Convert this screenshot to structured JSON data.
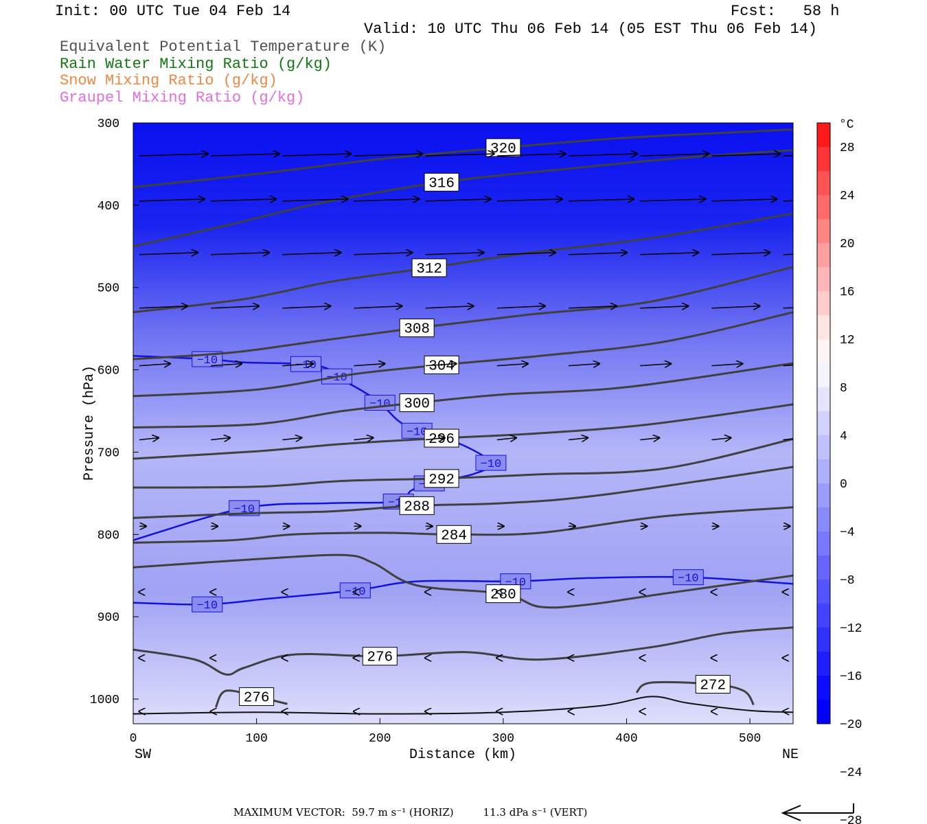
{
  "header": {
    "init": "Init: 00 UTC Tue 04 Feb 14",
    "fcst": "Fcst:   58 h",
    "valid": "Valid: 10 UTC Thu 06 Feb 14 (05 EST Thu 06 Feb 14)"
  },
  "legend_fields": [
    {
      "label": "Equivalent Potential Temperature (K)",
      "color": "#505050"
    },
    {
      "label": "Rain Water Mixing Ratio (g/kg)",
      "color": "#117711"
    },
    {
      "label": "Snow Mixing Ratio (g/kg)",
      "color": "#ee8844"
    },
    {
      "label": "Graupel Mixing Ratio (g/kg)",
      "color": "#e070e0"
    }
  ],
  "chart_data": {
    "type": "contour",
    "xlabel": "Distance (km)",
    "ylabel": "Pressure (hPa)",
    "x_ticks": [
      0,
      100,
      200,
      300,
      400,
      500
    ],
    "xlim": [
      0,
      535
    ],
    "y_ticks": [
      300,
      400,
      500,
      600,
      700,
      800,
      900,
      1000
    ],
    "ylim": [
      1030,
      300
    ],
    "x_left_end": "SW",
    "x_right_end": "NE",
    "colorbar": {
      "unit": "°C",
      "tick_labels": [
        "28",
        "24",
        "20",
        "16",
        "12",
        "8",
        "4",
        "0",
        "−4",
        "−8",
        "−12",
        "−16",
        "−20",
        "−24",
        "−28"
      ],
      "colors": [
        "#ff1a1a",
        "#ff3434",
        "#ff5252",
        "#ff6b6b",
        "#ff8585",
        "#ffa0a0",
        "#ffb6b6",
        "#ffcccc",
        "#ffe4e4",
        "#fff4f4",
        "#f4f4ff",
        "#e4e4ff",
        "#d2d2ff",
        "#c0c0ff",
        "#aeaeff",
        "#9c9cff",
        "#8a8aff",
        "#7878ff",
        "#6666ff",
        "#5454ff",
        "#4242ff",
        "#3030ff",
        "#1e1eff",
        "#0c0cff",
        "#0000ff"
      ]
    },
    "theta_e_contours": [
      {
        "label": "320",
        "points": [
          [
            0,
            378
          ],
          [
            100,
            362
          ],
          [
            200,
            344
          ],
          [
            300,
            330
          ],
          [
            400,
            318
          ],
          [
            535,
            308
          ]
        ]
      },
      {
        "label": "316",
        "points": [
          [
            0,
            450
          ],
          [
            80,
            423
          ],
          [
            150,
            398
          ],
          [
            250,
            372
          ],
          [
            350,
            356
          ],
          [
            450,
            342
          ],
          [
            535,
            333
          ]
        ]
      },
      {
        "label": "312",
        "points": [
          [
            0,
            530
          ],
          [
            90,
            514
          ],
          [
            160,
            493
          ],
          [
            240,
            476
          ],
          [
            320,
            458
          ],
          [
            420,
            440
          ],
          [
            535,
            410
          ]
        ]
      },
      {
        "label": "308",
        "points": [
          [
            0,
            587
          ],
          [
            80,
            579
          ],
          [
            150,
            565
          ],
          [
            230,
            549
          ],
          [
            320,
            533
          ],
          [
            420,
            517
          ],
          [
            535,
            475
          ]
        ]
      },
      {
        "label": "304",
        "points": [
          [
            0,
            632
          ],
          [
            100,
            624
          ],
          [
            180,
            605
          ],
          [
            250,
            594
          ],
          [
            330,
            583
          ],
          [
            430,
            566
          ],
          [
            535,
            530
          ]
        ]
      },
      {
        "label": "300",
        "points": [
          [
            0,
            670
          ],
          [
            100,
            666
          ],
          [
            170,
            650
          ],
          [
            230,
            640
          ],
          [
            300,
            630
          ],
          [
            400,
            621
          ],
          [
            535,
            592
          ]
        ]
      },
      {
        "label": "296",
        "points": [
          [
            0,
            708
          ],
          [
            100,
            699
          ],
          [
            170,
            690
          ],
          [
            250,
            683
          ],
          [
            330,
            677
          ],
          [
            420,
            666
          ],
          [
            535,
            642
          ]
        ]
      },
      {
        "label": "292",
        "points": [
          [
            0,
            743
          ],
          [
            100,
            742
          ],
          [
            170,
            735
          ],
          [
            250,
            732
          ],
          [
            330,
            727
          ],
          [
            430,
            720
          ],
          [
            535,
            684
          ]
        ]
      },
      {
        "label": "288",
        "points": [
          [
            0,
            780
          ],
          [
            100,
            774
          ],
          [
            160,
            772
          ],
          [
            230,
            765
          ],
          [
            300,
            762
          ],
          [
            380,
            752
          ],
          [
            535,
            718
          ]
        ]
      },
      {
        "label": "284",
        "points": [
          [
            0,
            810
          ],
          [
            80,
            807
          ],
          [
            130,
            800
          ],
          [
            200,
            798
          ],
          [
            260,
            800
          ],
          [
            330,
            798
          ],
          [
            430,
            778
          ],
          [
            535,
            767
          ]
        ]
      },
      {
        "label": "280",
        "points": [
          [
            0,
            840
          ],
          [
            100,
            830
          ],
          [
            170,
            825
          ],
          [
            195,
            835
          ],
          [
            230,
            862
          ],
          [
            300,
            872
          ],
          [
            330,
            888
          ],
          [
            370,
            885
          ],
          [
            430,
            872
          ],
          [
            535,
            850
          ]
        ]
      },
      {
        "label": "276",
        "points": [
          [
            0,
            940
          ],
          [
            50,
            952
          ],
          [
            75,
            970
          ],
          [
            90,
            962
          ],
          [
            130,
            946
          ],
          [
            200,
            948
          ],
          [
            270,
            943
          ],
          [
            330,
            952
          ],
          [
            420,
            937
          ],
          [
            480,
            920
          ],
          [
            535,
            913
          ]
        ]
      },
      {
        "label": "276",
        "points": [
          [
            67,
            1010
          ],
          [
            75,
            990
          ],
          [
            100,
            997
          ],
          [
            125,
            1006
          ]
        ]
      },
      {
        "label": "272",
        "points": [
          [
            408,
            992
          ],
          [
            420,
            980
          ],
          [
            470,
            982
          ],
          [
            495,
            990
          ],
          [
            503,
            1007
          ]
        ]
      }
    ],
    "temperature_contours": [
      {
        "label": "−10",
        "points": [
          [
            0,
            583
          ],
          [
            60,
            587
          ],
          [
            90,
            591
          ],
          [
            140,
            593
          ],
          [
            160,
            600
          ],
          [
            165,
            608
          ],
          [
            185,
            625
          ],
          [
            200,
            640
          ],
          [
            215,
            662
          ],
          [
            230,
            674
          ],
          [
            265,
            690
          ],
          [
            290,
            713
          ],
          [
            275,
            727
          ],
          [
            240,
            738
          ],
          [
            225,
            747
          ],
          [
            215,
            760
          ],
          [
            160,
            762
          ],
          [
            90,
            768
          ],
          [
            0,
            807
          ]
        ]
      },
      {
        "label": "−10",
        "points": [
          [
            0,
            883
          ],
          [
            60,
            885
          ],
          [
            110,
            878
          ],
          [
            180,
            868
          ],
          [
            230,
            857
          ],
          [
            310,
            857
          ],
          [
            370,
            853
          ],
          [
            450,
            852
          ],
          [
            535,
            860
          ]
        ]
      }
    ],
    "vector_scale": {
      "max_horizontal": "59.7",
      "max_vertical": "11.3"
    }
  },
  "footer": {
    "text": "MAXIMUM VECTOR:  59.7 m s⁻¹ (HORIZ)         11.3 dPa s⁻¹ (VERT)"
  }
}
